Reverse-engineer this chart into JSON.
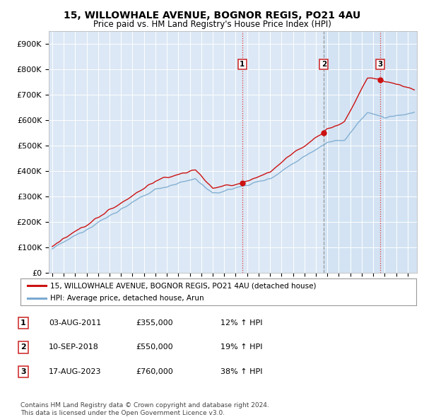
{
  "title": "15, WILLOWHALE AVENUE, BOGNOR REGIS, PO21 4AU",
  "subtitle": "Price paid vs. HM Land Registry's House Price Index (HPI)",
  "ylabel_ticks": [
    "£0",
    "£100K",
    "£200K",
    "£300K",
    "£400K",
    "£500K",
    "£600K",
    "£700K",
    "£800K",
    "£900K"
  ],
  "ytick_values": [
    0,
    100000,
    200000,
    300000,
    400000,
    500000,
    600000,
    700000,
    800000,
    900000
  ],
  "ylim": [
    0,
    950000
  ],
  "xlim_start": 1994.7,
  "xlim_end": 2026.8,
  "sale_dates": [
    2011.583,
    2018.694,
    2023.625
  ],
  "sale_prices": [
    355000,
    550000,
    760000
  ],
  "sale_labels": [
    "1",
    "2",
    "3"
  ],
  "vline1_color": "#dd2222",
  "vline1_style": ":",
  "vline2_color": "#888888",
  "vline2_style": "--",
  "vline3_color": "#dd2222",
  "vline3_style": ":",
  "red_line_color": "#cc1111",
  "blue_line_color": "#7aaad0",
  "shade_color": "#dce8f5",
  "legend1_label": "15, WILLOWHALE AVENUE, BOGNOR REGIS, PO21 4AU (detached house)",
  "legend2_label": "HPI: Average price, detached house, Arun",
  "table_rows": [
    [
      "1",
      "03-AUG-2011",
      "£355,000",
      "12% ↑ HPI"
    ],
    [
      "2",
      "10-SEP-2018",
      "£550,000",
      "19% ↑ HPI"
    ],
    [
      "3",
      "17-AUG-2023",
      "£760,000",
      "38% ↑ HPI"
    ]
  ],
  "footer": "Contains HM Land Registry data © Crown copyright and database right 2024.\nThis data is licensed under the Open Government Licence v3.0.",
  "background_color": "#ffffff",
  "plot_bg_color": "#dce8f5"
}
